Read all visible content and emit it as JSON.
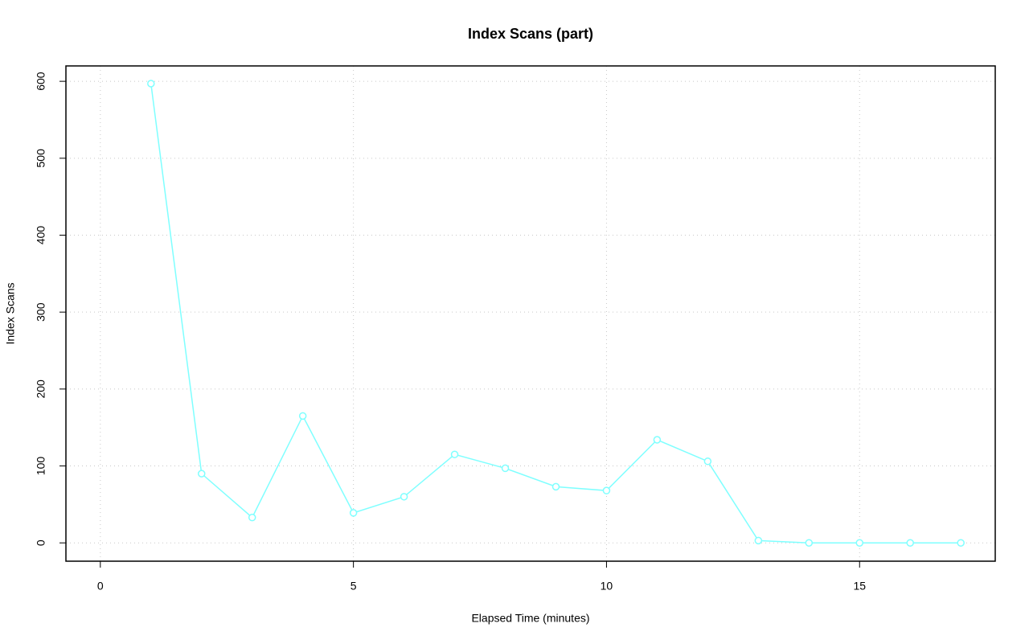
{
  "chart_data": {
    "type": "line",
    "title": "Index Scans (part)",
    "x_label": "Elapsed Time (minutes)",
    "y_label": "Index Scans",
    "x": [
      1,
      2,
      3,
      4,
      5,
      6,
      7,
      8,
      9,
      10,
      11,
      12,
      13,
      14,
      15,
      16,
      17
    ],
    "values": [
      597,
      90,
      33,
      165,
      39,
      60,
      115,
      97,
      73,
      68,
      134,
      106,
      3,
      0,
      0,
      0,
      0
    ],
    "color": "#7fffff",
    "xlim": [
      -0.68,
      17.68
    ],
    "xticks": [
      0,
      5,
      10,
      15
    ],
    "ylim": [
      -23.8,
      620
    ],
    "yticks": [
      0,
      100,
      200,
      300,
      400,
      500,
      600
    ],
    "grid": true
  }
}
